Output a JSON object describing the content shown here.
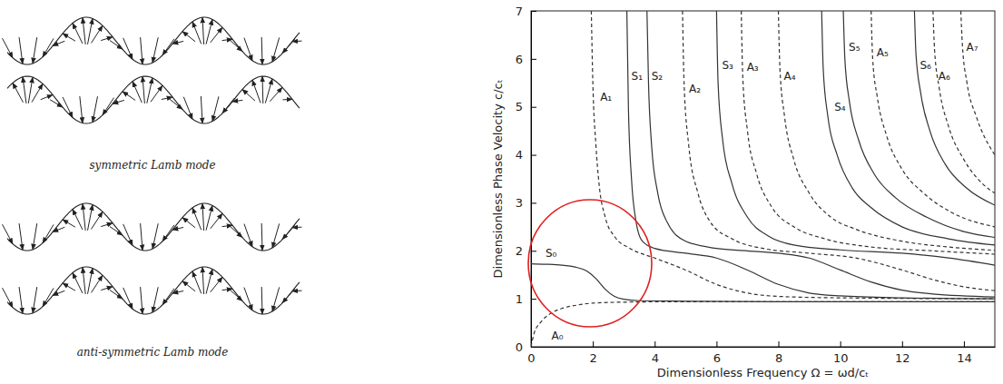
{
  "chart_data": {
    "type": "line",
    "xlabel": "Dimensionless Frequency Ω = ωd/cₜ",
    "ylabel": "Dimensionless Phase Velocity c/cₜ",
    "xlim": [
      0,
      15
    ],
    "ylim": [
      0,
      7
    ],
    "xticks": [
      0,
      2,
      4,
      6,
      8,
      10,
      12,
      14
    ],
    "yticks": [
      0,
      1,
      2,
      3,
      4,
      5,
      6,
      7
    ],
    "series": [
      {
        "name": "S₀",
        "color": "#333333",
        "line_style": "solid",
        "x": [
          0,
          0.5,
          1,
          1.5,
          1.8,
          2.1,
          2.4,
          2.7,
          3,
          3.5,
          5,
          8,
          15
        ],
        "values": [
          1.73,
          1.72,
          1.7,
          1.65,
          1.58,
          1.42,
          1.2,
          1.05,
          0.99,
          0.96,
          0.95,
          0.94,
          0.94
        ]
      },
      {
        "name": "A₀",
        "color": "#333333",
        "line_style": "dashed",
        "x": [
          0,
          0.1,
          0.3,
          0.6,
          1,
          1.5,
          2,
          3,
          5,
          8,
          15
        ],
        "values": [
          0,
          0.28,
          0.5,
          0.68,
          0.8,
          0.87,
          0.91,
          0.93,
          0.94,
          0.94,
          0.94
        ]
      },
      {
        "name": "A₁",
        "color": "#333333",
        "line_style": "dashed",
        "x": [
          1.95,
          2.0,
          2.1,
          2.2,
          2.4,
          2.7,
          3.2,
          4,
          5,
          6,
          7,
          8,
          10,
          15
        ],
        "values": [
          7,
          5.5,
          4.2,
          3.4,
          2.7,
          2.3,
          2.05,
          1.85,
          1.6,
          1.3,
          1.12,
          1.05,
          1.02,
          1.0
        ]
      },
      {
        "name": "S₁",
        "color": "#333333",
        "line_style": "solid",
        "x": [
          3.1,
          3.15,
          3.25,
          3.4,
          3.6,
          4,
          5,
          6,
          7,
          8,
          9,
          10,
          12,
          15
        ],
        "values": [
          7,
          5,
          3.5,
          2.6,
          2.2,
          2.05,
          1.95,
          1.85,
          1.6,
          1.3,
          1.12,
          1.06,
          1.02,
          1.0
        ]
      },
      {
        "name": "S₂",
        "color": "#333333",
        "line_style": "solid",
        "x": [
          3.75,
          3.8,
          3.9,
          4.1,
          4.4,
          5,
          6,
          7,
          8,
          9,
          10,
          11,
          12,
          13,
          15
        ],
        "values": [
          7,
          5.5,
          4.2,
          3.2,
          2.6,
          2.2,
          2.05,
          2.0,
          1.95,
          1.85,
          1.6,
          1.35,
          1.18,
          1.1,
          1.04
        ]
      },
      {
        "name": "A₂",
        "color": "#333333",
        "line_style": "dashed",
        "x": [
          4.9,
          4.95,
          5.1,
          5.4,
          5.8,
          6.5,
          7.5,
          9,
          10.5,
          12,
          13,
          14,
          15
        ],
        "values": [
          7,
          5.5,
          4.2,
          3.2,
          2.6,
          2.25,
          2.05,
          1.95,
          1.85,
          1.6,
          1.4,
          1.25,
          1.17
        ]
      },
      {
        "name": "S₃",
        "color": "#333333",
        "line_style": "solid",
        "x": [
          6.0,
          6.05,
          6.2,
          6.5,
          7,
          7.7,
          8.5,
          10,
          12,
          13.5,
          15
        ],
        "values": [
          7,
          5.5,
          4.3,
          3.4,
          2.7,
          2.3,
          2.12,
          2.02,
          1.95,
          1.85,
          1.7
        ]
      },
      {
        "name": "A₃",
        "color": "#333333",
        "line_style": "dashed",
        "x": [
          6.8,
          6.85,
          7.0,
          7.3,
          7.8,
          8.5,
          9.5,
          11,
          13,
          15
        ],
        "values": [
          7,
          5.6,
          4.5,
          3.6,
          2.9,
          2.5,
          2.25,
          2.08,
          2.0,
          1.93
        ]
      },
      {
        "name": "A₄",
        "color": "#333333",
        "line_style": "dashed",
        "x": [
          8.0,
          8.05,
          8.2,
          8.5,
          9,
          9.7,
          10.5,
          12,
          13.5,
          15
        ],
        "values": [
          7,
          5.8,
          4.8,
          3.9,
          3.2,
          2.7,
          2.45,
          2.2,
          2.08,
          2.01
        ]
      },
      {
        "name": "S₄",
        "color": "#333333",
        "line_style": "solid",
        "x": [
          9.4,
          9.45,
          9.6,
          9.9,
          10.4,
          11,
          12,
          13.5,
          15
        ],
        "values": [
          7,
          5.8,
          4.8,
          4.0,
          3.3,
          2.9,
          2.5,
          2.25,
          2.12
        ]
      },
      {
        "name": "S₅",
        "color": "#333333",
        "line_style": "solid",
        "x": [
          10.1,
          10.15,
          10.3,
          10.6,
          11.1,
          11.8,
          12.8,
          14,
          15
        ],
        "values": [
          7,
          6,
          5.1,
          4.3,
          3.6,
          3.1,
          2.7,
          2.4,
          2.28
        ]
      },
      {
        "name": "A₅",
        "color": "#333333",
        "line_style": "dashed",
        "x": [
          11.0,
          11.05,
          11.2,
          11.5,
          12,
          12.7,
          13.6,
          15
        ],
        "values": [
          7,
          6,
          5.2,
          4.4,
          3.7,
          3.2,
          2.8,
          2.5
        ]
      },
      {
        "name": "S₆",
        "color": "#333333",
        "line_style": "solid",
        "x": [
          12.4,
          12.45,
          12.6,
          12.9,
          13.4,
          14.1,
          15
        ],
        "values": [
          7,
          6.1,
          5.3,
          4.5,
          3.8,
          3.3,
          2.95
        ]
      },
      {
        "name": "A₆",
        "color": "#333333",
        "line_style": "dashed",
        "x": [
          13.0,
          13.05,
          13.2,
          13.5,
          14,
          14.6,
          15
        ],
        "values": [
          7,
          6.2,
          5.4,
          4.6,
          3.9,
          3.4,
          3.2
        ]
      },
      {
        "name": "A₇",
        "color": "#333333",
        "line_style": "dashed",
        "x": [
          13.9,
          13.95,
          14.1,
          14.4,
          14.9,
          15
        ],
        "values": [
          7,
          6.3,
          5.5,
          4.8,
          4.1,
          4.0
        ]
      }
    ]
  },
  "diagram": {
    "captions": [
      "symmetric Lamb mode",
      "anti-symmetric Lamb mode"
    ]
  }
}
